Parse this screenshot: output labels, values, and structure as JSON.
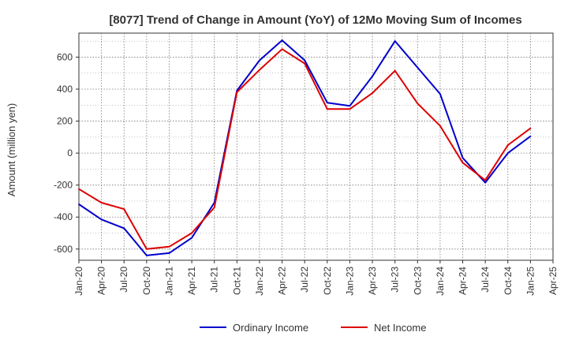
{
  "chart_data": {
    "type": "line",
    "title": "[8077]  Trend of Change in Amount (YoY) of 12Mo Moving Sum of Incomes",
    "ylabel": "Amount (million yen)",
    "xlabel": "",
    "ylim": [
      -670,
      750
    ],
    "yticks": [
      -600,
      -400,
      -200,
      0,
      200,
      400,
      600
    ],
    "categories": [
      "Jan-20",
      "Apr-20",
      "Jul-20",
      "Oct-20",
      "Jan-21",
      "Apr-21",
      "Jul-21",
      "Oct-21",
      "Jan-22",
      "Apr-22",
      "Jul-22",
      "Oct-22",
      "Jan-23",
      "Apr-23",
      "Jul-23",
      "Oct-23",
      "Jan-24",
      "Apr-24",
      "Jul-24",
      "Oct-24",
      "Jan-25",
      "Apr-25"
    ],
    "grid": true,
    "legend_position": "bottom",
    "series": [
      {
        "name": "Ordinary Income",
        "color": "#0000cc",
        "values": [
          -320,
          -415,
          -470,
          -640,
          -625,
          -530,
          -310,
          390,
          580,
          705,
          580,
          315,
          295,
          480,
          700,
          535,
          370,
          -30,
          -185,
          0,
          105,
          null
        ]
      },
      {
        "name": "Net Income",
        "color": "#dd0000",
        "values": [
          -225,
          -310,
          -350,
          -600,
          -585,
          -500,
          -340,
          380,
          520,
          650,
          560,
          275,
          275,
          375,
          515,
          310,
          170,
          -60,
          -170,
          50,
          155,
          null
        ]
      }
    ]
  }
}
